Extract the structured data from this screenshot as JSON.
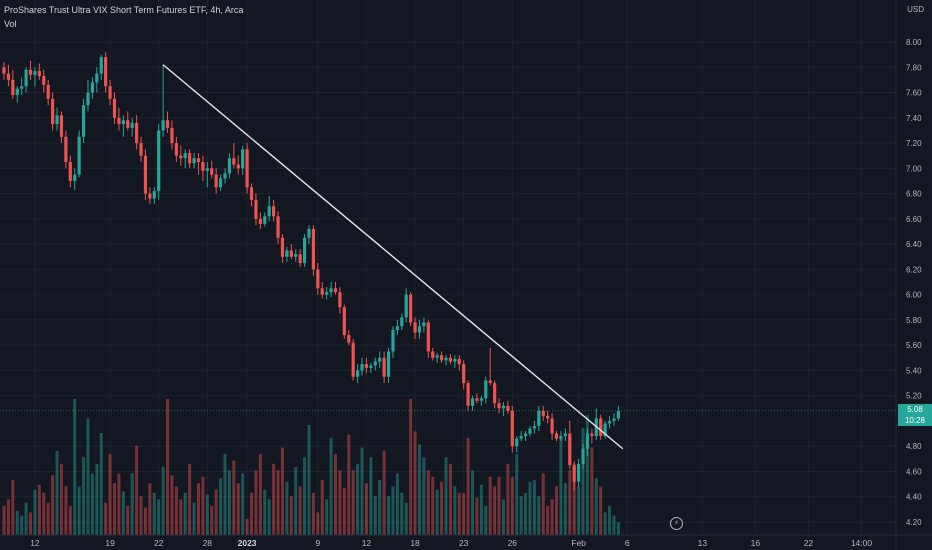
{
  "header": {
    "title": "ProShares Trust Ultra VIX Short Term Futures ETF, 4h, Arca",
    "indicator": "Vol",
    "currency": "USD"
  },
  "price_tag": {
    "price": "5.08",
    "countdown": "10:28"
  },
  "colors": {
    "up": "#26a69a",
    "down": "#ef5350",
    "background": "#131722",
    "trendline": "#e6e6e6"
  },
  "icons": [
    "replay-bolt-icon"
  ],
  "chart_data": {
    "type": "candlestick",
    "title": "ProShares Trust Ultra VIX Short Term Futures ETF, 4h, Arca",
    "ylabel": "USD",
    "ylim": [
      4.14,
      8.24
    ],
    "yticks": [
      "8.00",
      "7.80",
      "7.60",
      "7.40",
      "7.20",
      "7.00",
      "6.80",
      "6.60",
      "6.40",
      "6.20",
      "6.00",
      "5.80",
      "5.60",
      "5.40",
      "5.20",
      "4.80",
      "4.60",
      "4.40",
      "4.20"
    ],
    "xticks": [
      {
        "label": "12",
        "i": 7
      },
      {
        "label": "19",
        "i": 24
      },
      {
        "label": "22",
        "i": 35
      },
      {
        "label": "28",
        "i": 46
      },
      {
        "label": "2023",
        "i": 55,
        "bold": true
      },
      {
        "label": "9",
        "i": 71
      },
      {
        "label": "12",
        "i": 82
      },
      {
        "label": "18",
        "i": 93
      },
      {
        "label": "23",
        "i": 104
      },
      {
        "label": "26",
        "i": 115
      },
      {
        "label": "Feb",
        "i": 130
      },
      {
        "label": "6",
        "i": 141
      },
      {
        "label": "13",
        "i": 158
      },
      {
        "label": "16",
        "i": 170
      },
      {
        "label": "22",
        "i": 182
      },
      {
        "label": "14:00",
        "i": 194
      }
    ],
    "candles": [
      [
        7.8,
        7.84,
        7.7,
        7.75
      ],
      [
        7.75,
        7.82,
        7.65,
        7.7
      ],
      [
        7.7,
        7.78,
        7.55,
        7.58
      ],
      [
        7.58,
        7.65,
        7.52,
        7.63
      ],
      [
        7.63,
        7.72,
        7.58,
        7.65
      ],
      [
        7.65,
        7.8,
        7.6,
        7.78
      ],
      [
        7.78,
        7.85,
        7.7,
        7.74
      ],
      [
        7.74,
        7.8,
        7.65,
        7.77
      ],
      [
        7.77,
        7.83,
        7.7,
        7.73
      ],
      [
        7.73,
        7.78,
        7.6,
        7.66
      ],
      [
        7.66,
        7.7,
        7.5,
        7.55
      ],
      [
        7.55,
        7.6,
        7.3,
        7.35
      ],
      [
        7.35,
        7.48,
        7.3,
        7.42
      ],
      [
        7.42,
        7.45,
        7.2,
        7.25
      ],
      [
        7.25,
        7.3,
        7.0,
        7.05
      ],
      [
        7.05,
        7.1,
        6.85,
        6.9
      ],
      [
        6.9,
        7.0,
        6.83,
        6.95
      ],
      [
        6.95,
        7.3,
        6.93,
        7.25
      ],
      [
        7.25,
        7.55,
        7.2,
        7.5
      ],
      [
        7.5,
        7.7,
        7.45,
        7.6
      ],
      [
        7.6,
        7.72,
        7.55,
        7.68
      ],
      [
        7.68,
        7.8,
        7.6,
        7.75
      ],
      [
        7.75,
        7.9,
        7.7,
        7.88
      ],
      [
        7.88,
        7.92,
        7.6,
        7.65
      ],
      [
        7.65,
        7.7,
        7.5,
        7.55
      ],
      [
        7.55,
        7.6,
        7.35,
        7.4
      ],
      [
        7.4,
        7.48,
        7.3,
        7.35
      ],
      [
        7.35,
        7.42,
        7.25,
        7.38
      ],
      [
        7.38,
        7.45,
        7.3,
        7.32
      ],
      [
        7.32,
        7.4,
        7.25,
        7.36
      ],
      [
        7.36,
        7.42,
        7.15,
        7.2
      ],
      [
        7.2,
        7.25,
        7.05,
        7.1
      ],
      [
        7.1,
        7.15,
        6.75,
        6.8
      ],
      [
        6.8,
        6.85,
        6.72,
        6.76
      ],
      [
        6.76,
        6.85,
        6.72,
        6.82
      ],
      [
        6.82,
        7.35,
        6.75,
        7.3
      ],
      [
        7.3,
        7.82,
        7.25,
        7.38
      ],
      [
        7.38,
        7.45,
        7.28,
        7.32
      ],
      [
        7.32,
        7.38,
        7.15,
        7.2
      ],
      [
        7.2,
        7.25,
        7.05,
        7.1
      ],
      [
        7.1,
        7.18,
        7.02,
        7.08
      ],
      [
        7.08,
        7.15,
        7.0,
        7.12
      ],
      [
        7.12,
        7.15,
        7.0,
        7.04
      ],
      [
        7.04,
        7.12,
        7.0,
        7.08
      ],
      [
        7.08,
        7.12,
        6.95,
        7.05
      ],
      [
        7.05,
        7.1,
        6.9,
        6.98
      ],
      [
        6.98,
        7.05,
        6.85,
        7.0
      ],
      [
        7.0,
        7.06,
        6.92,
        6.95
      ],
      [
        6.95,
        7.0,
        6.8,
        6.85
      ],
      [
        6.85,
        6.95,
        6.82,
        6.92
      ],
      [
        6.92,
        7.0,
        6.88,
        6.96
      ],
      [
        6.96,
        7.12,
        6.92,
        7.08
      ],
      [
        7.08,
        7.2,
        7.0,
        7.03
      ],
      [
        7.03,
        7.1,
        6.95,
        7.0
      ],
      [
        7.0,
        7.18,
        6.95,
        7.15
      ],
      [
        7.15,
        7.2,
        6.8,
        6.85
      ],
      [
        6.85,
        6.88,
        6.7,
        6.75
      ],
      [
        6.75,
        6.8,
        6.55,
        6.6
      ],
      [
        6.6,
        6.65,
        6.52,
        6.56
      ],
      [
        6.56,
        6.65,
        6.54,
        6.62
      ],
      [
        6.62,
        6.78,
        6.58,
        6.7
      ],
      [
        6.7,
        6.75,
        6.58,
        6.62
      ],
      [
        6.62,
        6.66,
        6.4,
        6.45
      ],
      [
        6.45,
        6.48,
        6.25,
        6.3
      ],
      [
        6.3,
        6.38,
        6.26,
        6.35
      ],
      [
        6.35,
        6.4,
        6.28,
        6.3
      ],
      [
        6.3,
        6.36,
        6.26,
        6.32
      ],
      [
        6.32,
        6.36,
        6.22,
        6.25
      ],
      [
        6.25,
        6.48,
        6.22,
        6.45
      ],
      [
        6.45,
        6.55,
        6.4,
        6.52
      ],
      [
        6.52,
        6.55,
        6.15,
        6.2
      ],
      [
        6.2,
        6.25,
        6.0,
        6.05
      ],
      [
        6.05,
        6.1,
        5.97,
        6.0
      ],
      [
        6.0,
        6.06,
        5.96,
        6.02
      ],
      [
        6.02,
        6.1,
        5.98,
        6.05
      ],
      [
        6.05,
        6.1,
        6.0,
        6.02
      ],
      [
        6.02,
        6.06,
        5.85,
        5.9
      ],
      [
        5.9,
        5.92,
        5.65,
        5.68
      ],
      [
        5.68,
        5.72,
        5.6,
        5.62
      ],
      [
        5.62,
        5.65,
        5.32,
        5.35
      ],
      [
        5.35,
        5.45,
        5.3,
        5.4
      ],
      [
        5.4,
        5.5,
        5.36,
        5.45
      ],
      [
        5.45,
        5.5,
        5.38,
        5.42
      ],
      [
        5.42,
        5.46,
        5.38,
        5.44
      ],
      [
        5.44,
        5.5,
        5.4,
        5.47
      ],
      [
        5.47,
        5.55,
        5.42,
        5.5
      ],
      [
        5.5,
        5.55,
        5.3,
        5.35
      ],
      [
        5.35,
        5.58,
        5.3,
        5.55
      ],
      [
        5.55,
        5.75,
        5.5,
        5.72
      ],
      [
        5.72,
        5.8,
        5.68,
        5.75
      ],
      [
        5.75,
        5.85,
        5.72,
        5.82
      ],
      [
        5.82,
        6.05,
        5.78,
        6.0
      ],
      [
        6.0,
        6.02,
        5.75,
        5.78
      ],
      [
        5.78,
        5.82,
        5.65,
        5.7
      ],
      [
        5.7,
        5.8,
        5.65,
        5.75
      ],
      [
        5.75,
        5.82,
        5.7,
        5.78
      ],
      [
        5.78,
        5.8,
        5.5,
        5.55
      ],
      [
        5.55,
        5.58,
        5.48,
        5.5
      ],
      [
        5.5,
        5.54,
        5.46,
        5.52
      ],
      [
        5.52,
        5.55,
        5.46,
        5.48
      ],
      [
        5.48,
        5.52,
        5.44,
        5.5
      ],
      [
        5.5,
        5.53,
        5.45,
        5.47
      ],
      [
        5.47,
        5.52,
        5.42,
        5.49
      ],
      [
        5.49,
        5.52,
        5.4,
        5.45
      ],
      [
        5.45,
        5.48,
        5.25,
        5.3
      ],
      [
        5.3,
        5.32,
        5.08,
        5.12
      ],
      [
        5.12,
        5.2,
        5.08,
        5.18
      ],
      [
        5.18,
        5.22,
        5.14,
        5.16
      ],
      [
        5.16,
        5.2,
        5.12,
        5.18
      ],
      [
        5.18,
        5.35,
        5.14,
        5.32
      ],
      [
        5.32,
        5.58,
        5.28,
        5.3
      ],
      [
        5.3,
        5.32,
        5.1,
        5.14
      ],
      [
        5.14,
        5.18,
        5.06,
        5.1
      ],
      [
        5.1,
        5.15,
        5.04,
        5.12
      ],
      [
        5.12,
        5.16,
        5.06,
        5.08
      ],
      [
        5.08,
        5.12,
        4.75,
        4.8
      ],
      [
        4.8,
        4.88,
        4.75,
        4.86
      ],
      [
        4.86,
        4.92,
        4.84,
        4.88
      ],
      [
        4.88,
        4.92,
        4.84,
        4.9
      ],
      [
        4.9,
        4.96,
        4.88,
        4.94
      ],
      [
        4.94,
        5.0,
        4.9,
        4.96
      ],
      [
        4.96,
        5.12,
        4.92,
        5.08
      ],
      [
        5.08,
        5.12,
        5.0,
        5.04
      ],
      [
        5.04,
        5.08,
        4.98,
        5.02
      ],
      [
        5.02,
        5.06,
        4.85,
        4.9
      ],
      [
        4.9,
        4.92,
        4.84,
        4.86
      ],
      [
        4.86,
        4.92,
        4.84,
        4.88
      ],
      [
        4.88,
        4.94,
        4.84,
        4.9
      ],
      [
        4.9,
        5.0,
        4.62,
        4.65
      ],
      [
        4.65,
        4.68,
        4.45,
        4.52
      ],
      [
        4.52,
        4.7,
        4.48,
        4.66
      ],
      [
        4.66,
        4.82,
        4.62,
        4.78
      ],
      [
        4.78,
        4.94,
        4.72,
        4.9
      ],
      [
        4.9,
        4.94,
        4.82,
        4.88
      ],
      [
        4.88,
        5.1,
        4.85,
        5.02
      ],
      [
        5.02,
        5.05,
        4.85,
        4.88
      ],
      [
        4.88,
        5.0,
        4.86,
        4.98
      ],
      [
        4.98,
        5.04,
        4.94,
        5.0
      ],
      [
        5.0,
        5.06,
        4.96,
        5.02
      ],
      [
        5.02,
        5.12,
        5.0,
        5.08
      ]
    ],
    "volume": [
      18,
      22,
      34,
      15,
      12,
      20,
      14,
      28,
      31,
      26,
      20,
      37,
      52,
      44,
      30,
      18,
      84,
      30,
      48,
      72,
      38,
      44,
      63,
      20,
      50,
      32,
      38,
      27,
      18,
      38,
      55,
      24,
      17,
      32,
      26,
      22,
      42,
      84,
      37,
      30,
      22,
      26,
      44,
      20,
      32,
      36,
      25,
      18,
      28,
      35,
      50,
      40,
      46,
      32,
      38,
      10,
      26,
      40,
      50,
      28,
      22,
      44,
      40,
      54,
      33,
      24,
      42,
      30,
      48,
      68,
      26,
      14,
      34,
      22,
      60,
      50,
      40,
      29,
      62,
      40,
      44,
      54,
      32,
      48,
      24,
      34,
      52,
      24,
      30,
      38,
      26,
      20,
      84,
      64,
      56,
      48,
      40,
      36,
      28,
      33,
      48,
      44,
      30,
      26,
      26,
      60,
      40,
      23,
      31,
      18,
      36,
      30,
      36,
      22,
      44,
      36,
      50,
      24,
      26,
      33,
      34,
      24,
      38,
      18,
      22,
      30,
      60,
      32,
      40,
      44,
      30,
      66,
      74,
      54,
      35,
      30,
      14,
      18,
      12,
      8
    ],
    "volume_colors": "matches candle direction",
    "trendline": {
      "from": {
        "i": 36,
        "price": 7.82
      },
      "to": {
        "i": 140,
        "price": 4.78
      }
    }
  }
}
